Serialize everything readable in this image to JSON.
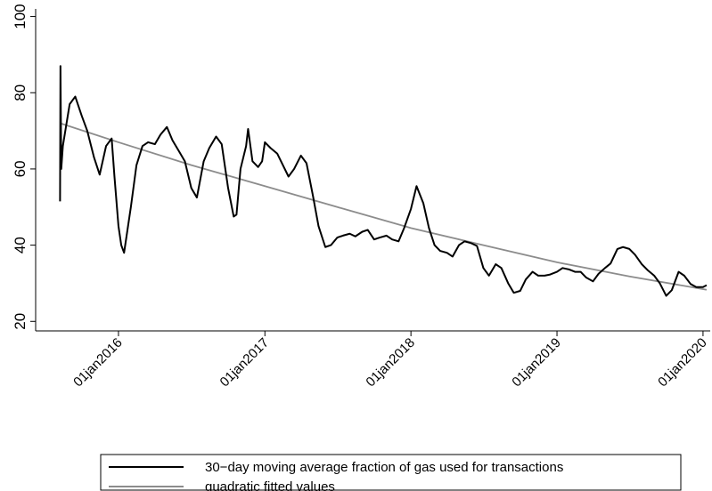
{
  "chart_data": {
    "type": "line",
    "x": [
      "2015-08-08",
      "2015-08-09",
      "2015-08-11",
      "2015-08-15",
      "2015-09-01",
      "2015-09-15",
      "2015-10-01",
      "2015-10-15",
      "2015-11-01",
      "2015-11-15",
      "2015-12-01",
      "2015-12-15",
      "2015-12-22",
      "2016-01-01",
      "2016-01-08",
      "2016-01-15",
      "2016-02-01",
      "2016-02-15",
      "2016-03-01",
      "2016-03-15",
      "2016-04-01",
      "2016-04-15",
      "2016-05-01",
      "2016-05-15",
      "2016-06-01",
      "2016-06-15",
      "2016-07-01",
      "2016-07-15",
      "2016-08-01",
      "2016-08-15",
      "2016-09-01",
      "2016-09-15",
      "2016-10-01",
      "2016-10-15",
      "2016-10-22",
      "2016-11-01",
      "2016-11-15",
      "2016-11-20",
      "2016-12-01",
      "2016-12-15",
      "2016-12-25",
      "2017-01-01",
      "2017-01-15",
      "2017-02-01",
      "2017-02-15",
      "2017-03-01",
      "2017-03-15",
      "2017-04-01",
      "2017-04-15",
      "2017-05-01",
      "2017-05-15",
      "2017-06-01",
      "2017-06-15",
      "2017-07-01",
      "2017-07-15",
      "2017-08-01",
      "2017-08-15",
      "2017-09-01",
      "2017-09-15",
      "2017-10-01",
      "2017-10-15",
      "2017-11-01",
      "2017-11-15",
      "2017-12-01",
      "2017-12-15",
      "2018-01-01",
      "2018-01-15",
      "2018-02-01",
      "2018-02-15",
      "2018-03-01",
      "2018-03-15",
      "2018-04-01",
      "2018-04-15",
      "2018-05-01",
      "2018-05-15",
      "2018-06-01",
      "2018-06-15",
      "2018-07-01",
      "2018-07-15",
      "2018-08-01",
      "2018-08-15",
      "2018-09-01",
      "2018-09-15",
      "2018-10-01",
      "2018-10-15",
      "2018-11-01",
      "2018-11-15",
      "2018-12-01",
      "2018-12-15",
      "2019-01-01",
      "2019-01-15",
      "2019-02-01",
      "2019-02-15",
      "2019-03-01",
      "2019-03-15",
      "2019-04-01",
      "2019-04-15",
      "2019-05-01",
      "2019-05-15",
      "2019-06-01",
      "2019-06-15",
      "2019-07-01",
      "2019-07-15",
      "2019-08-01",
      "2019-08-15",
      "2019-09-01",
      "2019-09-15",
      "2019-10-01",
      "2019-10-15",
      "2019-11-01",
      "2019-11-15",
      "2019-12-01",
      "2019-12-15",
      "2020-01-01",
      "2020-01-10"
    ],
    "series": [
      {
        "name": "30−day moving average fraction of gas used for transactions",
        "color": "#000000",
        "values": [
          51.5,
          87,
          60,
          66,
          77,
          79,
          74,
          70,
          63,
          58.5,
          66,
          68,
          58,
          45,
          40,
          38,
          50,
          61,
          66,
          67,
          66.5,
          69,
          71,
          67.5,
          64.5,
          62,
          55,
          52.5,
          62,
          65.5,
          68.5,
          66.5,
          55,
          47.5,
          48,
          60,
          66,
          70.5,
          62,
          60.5,
          62,
          67,
          65.5,
          64,
          61,
          58,
          60,
          63.5,
          61.5,
          53,
          45,
          39.5,
          40,
          42,
          42.5,
          43,
          42.3,
          43.5,
          44,
          41.5,
          42,
          42.5,
          41.5,
          41,
          44.5,
          49.5,
          55.5,
          51,
          44.5,
          40,
          38.5,
          38,
          37,
          40,
          41,
          40.5,
          39.8,
          34,
          32,
          35,
          34,
          30,
          27.5,
          28,
          31,
          33,
          32,
          32,
          32.3,
          33,
          34,
          33.6,
          33,
          33,
          31.5,
          30.5,
          32.5,
          34,
          35.2,
          39,
          39.5,
          39,
          37.5,
          35,
          33.5,
          32,
          30,
          26.7,
          28.2,
          33,
          32,
          29.8,
          29,
          29,
          29.5
        ]
      },
      {
        "name": "quadratic fitted values",
        "color": "#8c8c8c",
        "x": [
          "2015-08-08",
          "2016-01-01",
          "2016-07-01",
          "2017-01-01",
          "2017-07-01",
          "2018-01-01",
          "2018-07-01",
          "2019-01-01",
          "2019-07-01",
          "2020-01-10"
        ],
        "values": [
          72,
          67,
          61,
          55.5,
          50,
          44.5,
          40,
          35.5,
          31.8,
          28.3
        ]
      }
    ],
    "xlim": [
      "2015-06-08",
      "2020-01-19"
    ],
    "xticks": [
      {
        "value": "2016-01-01",
        "label": "01jan2016"
      },
      {
        "value": "2017-01-01",
        "label": "01jan2017"
      },
      {
        "value": "2018-01-01",
        "label": "01jan2018"
      },
      {
        "value": "2019-01-01",
        "label": "01jan2019"
      },
      {
        "value": "2020-01-01",
        "label": "01jan2020"
      }
    ],
    "ylim": [
      17.5,
      102
    ],
    "yticks": [
      20,
      40,
      60,
      80,
      100
    ],
    "grid": false,
    "legend": "bottom"
  }
}
